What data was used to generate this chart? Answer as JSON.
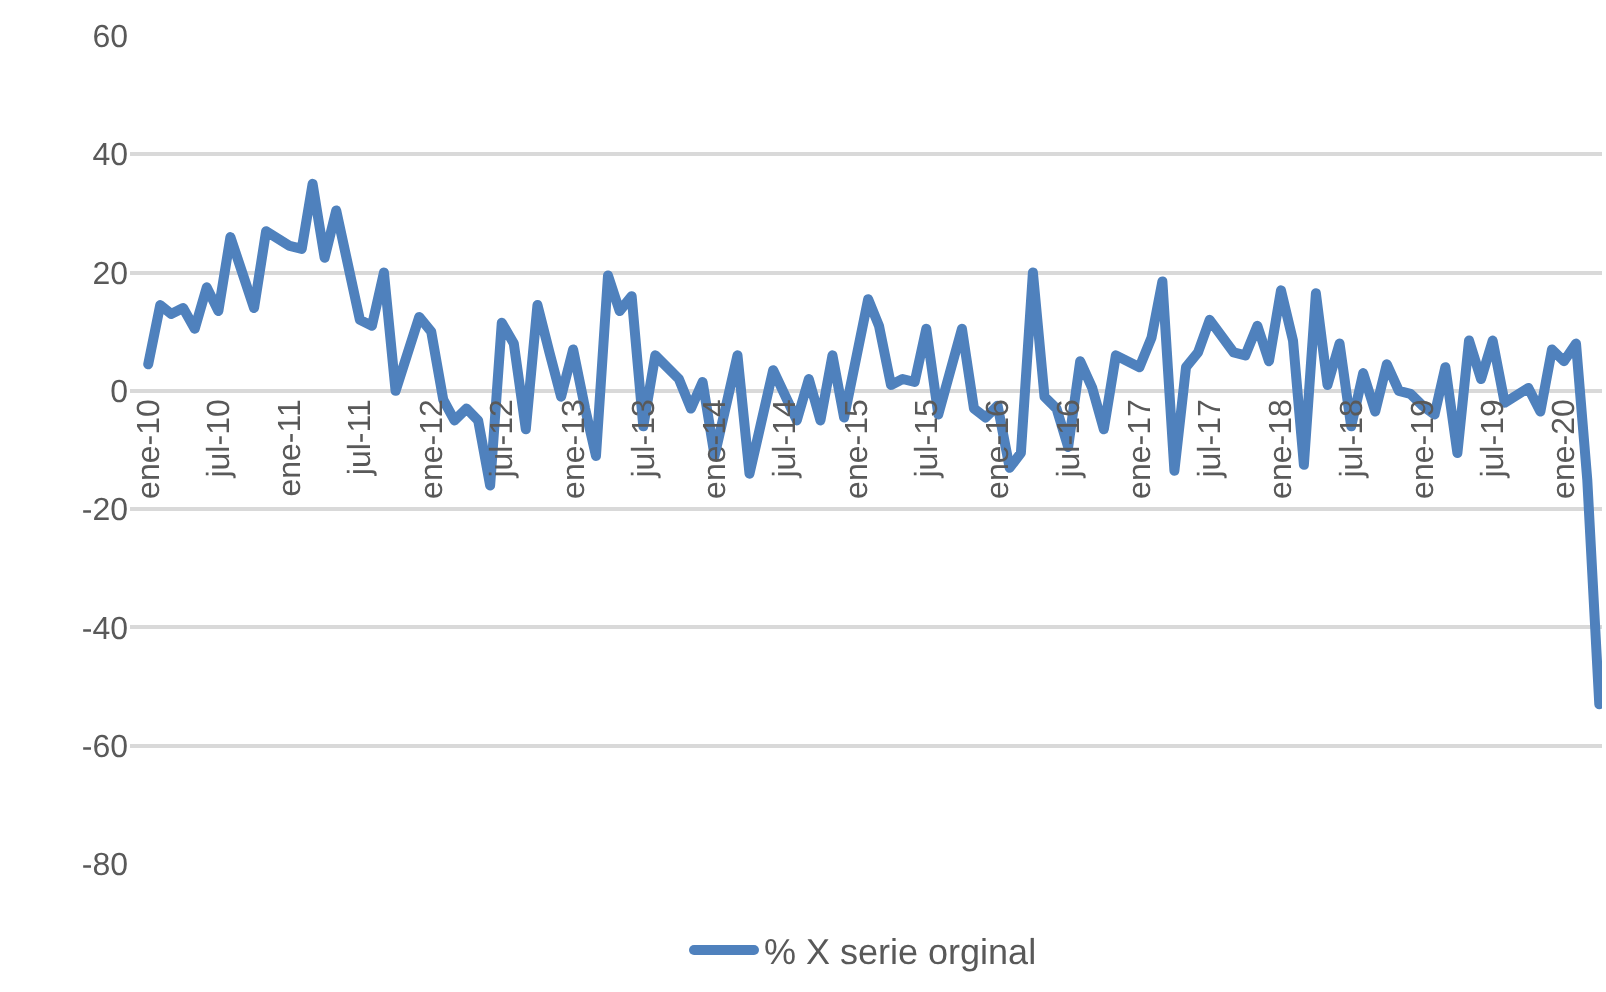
{
  "chart_data": {
    "type": "line",
    "x": [
      "2010-01",
      "2010-02",
      "2010-03",
      "2010-04",
      "2010-05",
      "2010-06",
      "2010-07",
      "2010-08",
      "2010-10",
      "2010-11",
      "2011-01",
      "2011-02",
      "2011-03",
      "2011-04",
      "2011-05",
      "2011-07",
      "2011-08",
      "2011-09",
      "2011-10",
      "2011-12",
      "2012-01",
      "2012-02",
      "2012-03",
      "2012-04",
      "2012-05",
      "2012-06",
      "2012-07",
      "2012-08",
      "2012-09",
      "2012-10",
      "2012-11",
      "2012-12",
      "2013-01",
      "2013-02",
      "2013-03",
      "2013-04",
      "2013-05",
      "2013-06",
      "2013-07",
      "2013-08",
      "2013-10",
      "2013-11",
      "2013-12",
      "2014-01",
      "2014-03",
      "2014-04",
      "2014-06",
      "2014-08",
      "2014-09",
      "2014-10",
      "2014-11",
      "2014-12",
      "2015-02",
      "2015-03",
      "2015-04",
      "2015-05",
      "2015-06",
      "2015-07",
      "2015-08",
      "2015-10",
      "2015-11",
      "2015-12",
      "2016-01",
      "2016-02",
      "2016-03",
      "2016-04",
      "2016-05",
      "2016-06",
      "2016-07",
      "2016-08",
      "2016-09",
      "2016-10",
      "2016-11",
      "2017-01",
      "2017-02",
      "2017-03",
      "2017-04",
      "2017-05",
      "2017-06",
      "2017-07",
      "2017-09",
      "2017-10",
      "2017-11",
      "2017-12",
      "2018-01",
      "2018-02",
      "2018-03",
      "2018-04",
      "2018-05",
      "2018-06",
      "2018-07",
      "2018-08",
      "2018-09",
      "2018-10",
      "2018-11",
      "2018-12",
      "2019-01",
      "2019-02",
      "2019-03",
      "2019-04",
      "2019-05",
      "2019-06",
      "2019-07",
      "2019-08",
      "2019-10",
      "2019-11",
      "2019-12",
      "2020-01",
      "2020-02",
      "2020-03",
      "2020-04"
    ],
    "series": [
      {
        "name": "% X serie orginal",
        "color": "#4f81bd",
        "values": [
          4.5,
          14.5,
          13,
          14,
          10.5,
          17.5,
          13.5,
          26,
          14,
          27,
          24.5,
          24,
          35,
          22.5,
          30.5,
          12,
          11,
          20,
          0,
          12.5,
          10,
          -1.5,
          -5,
          -3,
          -5,
          -16,
          11.5,
          8,
          -6.5,
          14.5,
          6.5,
          -1,
          7,
          -3,
          -11,
          19.5,
          13.5,
          16,
          -6,
          6,
          2,
          -3,
          1.5,
          -11,
          6,
          -14,
          3.5,
          -5,
          2,
          -5,
          6,
          -4.5,
          15.5,
          11,
          1,
          2,
          1.5,
          10.5,
          -4,
          10.5,
          -3,
          -4.5,
          -2.5,
          -13,
          -10.5,
          20,
          -1,
          -3,
          -9.5,
          5,
          0.5,
          -6.5,
          6,
          4,
          9,
          18.5,
          -13.5,
          4,
          6.5,
          12,
          6.5,
          6,
          11,
          5,
          17,
          8.5,
          -12.5,
          16.5,
          1,
          8,
          -6,
          3,
          -3.5,
          4.5,
          0,
          -0.5,
          -2.5,
          -4,
          4,
          -10.5,
          8.5,
          2,
          8.5,
          -2,
          0.5,
          -3.5,
          7,
          5,
          8,
          -15,
          -53
        ]
      }
    ],
    "xlim": [
      "2009-11-15",
      "2020-04-08"
    ],
    "xticks": [
      {
        "value": "2010-01",
        "label": "ene-10"
      },
      {
        "value": "2010-07",
        "label": "jul-10"
      },
      {
        "value": "2011-01",
        "label": "ene-11"
      },
      {
        "value": "2011-07",
        "label": "jul-11"
      },
      {
        "value": "2012-01",
        "label": "ene-12"
      },
      {
        "value": "2012-07",
        "label": "jul-12"
      },
      {
        "value": "2013-01",
        "label": "ene-13"
      },
      {
        "value": "2013-07",
        "label": "jul-13"
      },
      {
        "value": "2014-01",
        "label": "ene-14"
      },
      {
        "value": "2014-07",
        "label": "jul-14"
      },
      {
        "value": "2015-01",
        "label": "ene-15"
      },
      {
        "value": "2015-07",
        "label": "jul-15"
      },
      {
        "value": "2016-01",
        "label": "ene-16"
      },
      {
        "value": "2016-07",
        "label": "jul-16"
      },
      {
        "value": "2017-01",
        "label": "ene-17"
      },
      {
        "value": "2017-07",
        "label": "jul-17"
      },
      {
        "value": "2018-01",
        "label": "ene-18"
      },
      {
        "value": "2018-07",
        "label": "jul-18"
      },
      {
        "value": "2019-01",
        "label": "ene-19"
      },
      {
        "value": "2019-07",
        "label": "jul-19"
      },
      {
        "value": "2020-01",
        "label": "ene-20"
      }
    ],
    "ylim": [
      -80,
      60
    ],
    "yticks": [
      -80,
      -60,
      -40,
      -20,
      0,
      20,
      40,
      60
    ],
    "grid": "y",
    "legend": "bottom",
    "marker": "none",
    "line_style": "solid"
  }
}
